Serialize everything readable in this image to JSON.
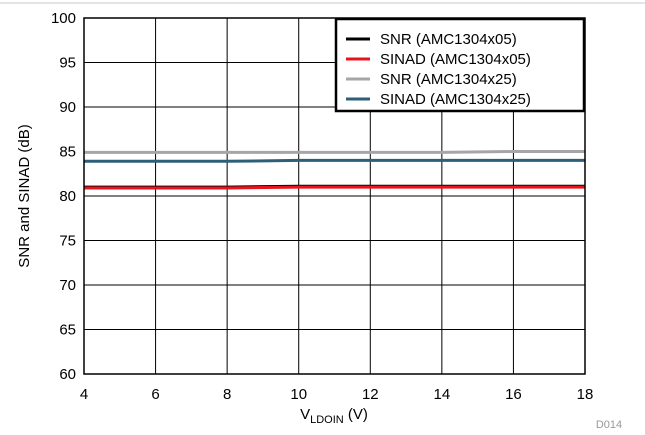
{
  "chart_data": {
    "type": "line",
    "xlabel_main": "V",
    "xlabel_sub": "LDOIN",
    "xlabel_unit": " (V)",
    "ylabel": "SNR and SINAD (dB)",
    "xlim": [
      4,
      18
    ],
    "ylim": [
      60,
      100
    ],
    "xticks": [
      4,
      6,
      8,
      10,
      12,
      14,
      16,
      18
    ],
    "yticks": [
      60,
      65,
      70,
      75,
      80,
      85,
      90,
      95,
      100
    ],
    "grid": true,
    "legend_position": "top-right",
    "figure_id": "D014",
    "series": [
      {
        "name": "SNR (AMC1304x05)",
        "color": "#000000",
        "x": [
          4,
          6,
          8,
          10,
          12,
          14,
          16,
          18
        ],
        "y": [
          81.0,
          81.0,
          81.0,
          81.1,
          81.1,
          81.1,
          81.1,
          81.1
        ]
      },
      {
        "name": "SINAD (AMC1304x05)",
        "color": "#e8141c",
        "x": [
          4,
          6,
          8,
          10,
          12,
          14,
          16,
          18
        ],
        "y": [
          80.9,
          80.9,
          80.9,
          81.0,
          81.0,
          81.0,
          81.0,
          81.0
        ]
      },
      {
        "name": "SNR (AMC1304x25)",
        "color": "#a6a6a6",
        "x": [
          4,
          6,
          8,
          10,
          12,
          14,
          16,
          18
        ],
        "y": [
          84.9,
          84.9,
          84.9,
          84.9,
          84.9,
          84.9,
          85.0,
          85.0
        ]
      },
      {
        "name": "SINAD (AMC1304x25)",
        "color": "#2e5f78",
        "x": [
          4,
          6,
          8,
          10,
          12,
          14,
          16,
          18
        ],
        "y": [
          83.9,
          83.9,
          83.9,
          84.0,
          84.0,
          84.0,
          84.0,
          84.0
        ]
      }
    ]
  }
}
